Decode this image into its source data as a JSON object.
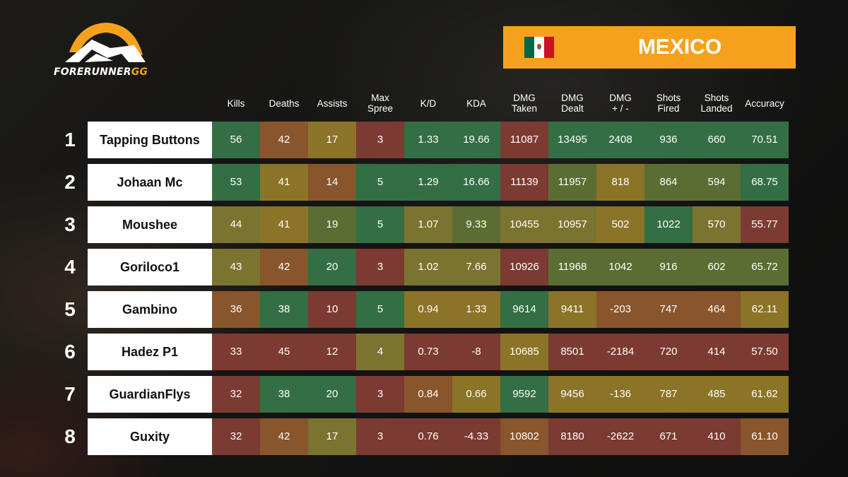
{
  "brand": {
    "name_main": "FORERUNNER",
    "name_suffix": "GG"
  },
  "country": {
    "name": "MEXICO"
  },
  "colors": {
    "green": "#346e44",
    "olive": "#5b6d32",
    "olive_yellow": "#7b7330",
    "yellow": "#8b7328",
    "orange": "#88552c",
    "red_brown": "#7b3a32",
    "accent": "#f6a11d"
  },
  "columns": [
    "Kills",
    "Deaths",
    "Assists",
    "Max\nSpree",
    "K/D",
    "KDA",
    "DMG\nTaken",
    "DMG\nDealt",
    "DMG\n+ / -",
    "Shots\nFired",
    "Shots\nLanded",
    "Accuracy"
  ],
  "rows": [
    {
      "rank": "1",
      "name": "Tapping Buttons",
      "values": [
        "56",
        "42",
        "17",
        "3",
        "1.33",
        "19.66",
        "11087",
        "13495",
        "2408",
        "936",
        "660",
        "70.51"
      ],
      "tones": [
        "green",
        "orange",
        "yellow",
        "red_brown",
        "green",
        "green",
        "red_brown",
        "green",
        "green",
        "green",
        "green",
        "green"
      ]
    },
    {
      "rank": "2",
      "name": "Johaan Mc",
      "values": [
        "53",
        "41",
        "14",
        "5",
        "1.29",
        "16.66",
        "11139",
        "11957",
        "818",
        "864",
        "594",
        "68.75"
      ],
      "tones": [
        "green",
        "yellow",
        "orange",
        "green",
        "green",
        "green",
        "red_brown",
        "olive",
        "yellow",
        "olive",
        "olive",
        "green"
      ]
    },
    {
      "rank": "3",
      "name": "Moushee",
      "values": [
        "44",
        "41",
        "19",
        "5",
        "1.07",
        "9.33",
        "10455",
        "10957",
        "502",
        "1022",
        "570",
        "55.77"
      ],
      "tones": [
        "olive_yellow",
        "yellow",
        "olive",
        "green",
        "olive_yellow",
        "olive",
        "olive_yellow",
        "olive_yellow",
        "yellow",
        "green",
        "olive_yellow",
        "red_brown"
      ]
    },
    {
      "rank": "4",
      "name": "Goriloco1",
      "values": [
        "43",
        "42",
        "20",
        "3",
        "1.02",
        "7.66",
        "10926",
        "11968",
        "1042",
        "916",
        "602",
        "65.72"
      ],
      "tones": [
        "olive_yellow",
        "orange",
        "green",
        "red_brown",
        "olive_yellow",
        "olive_yellow",
        "red_brown",
        "olive",
        "olive",
        "olive",
        "olive",
        "olive"
      ]
    },
    {
      "rank": "5",
      "name": "Gambino",
      "values": [
        "36",
        "38",
        "10",
        "5",
        "0.94",
        "1.33",
        "9614",
        "9411",
        "-203",
        "747",
        "464",
        "62.11"
      ],
      "tones": [
        "orange",
        "green",
        "red_brown",
        "green",
        "yellow",
        "yellow",
        "green",
        "yellow",
        "orange",
        "orange",
        "orange",
        "yellow"
      ]
    },
    {
      "rank": "6",
      "name": "Hadez P1",
      "values": [
        "33",
        "45",
        "12",
        "4",
        "0.73",
        "-8",
        "10685",
        "8501",
        "-2184",
        "720",
        "414",
        "57.50"
      ],
      "tones": [
        "red_brown",
        "red_brown",
        "red_brown",
        "olive_yellow",
        "red_brown",
        "red_brown",
        "yellow",
        "red_brown",
        "red_brown",
        "red_brown",
        "red_brown",
        "red_brown"
      ]
    },
    {
      "rank": "7",
      "name": "GuardianFlys",
      "values": [
        "32",
        "38",
        "20",
        "3",
        "0.84",
        "0.66",
        "9592",
        "9456",
        "-136",
        "787",
        "485",
        "61.62"
      ],
      "tones": [
        "red_brown",
        "green",
        "green",
        "red_brown",
        "orange",
        "yellow",
        "green",
        "yellow",
        "yellow",
        "yellow",
        "yellow",
        "yellow"
      ]
    },
    {
      "rank": "8",
      "name": "Guxity",
      "values": [
        "32",
        "42",
        "17",
        "3",
        "0.76",
        "-4.33",
        "10802",
        "8180",
        "-2622",
        "671",
        "410",
        "61.10"
      ],
      "tones": [
        "red_brown",
        "orange",
        "olive_yellow",
        "red_brown",
        "red_brown",
        "red_brown",
        "orange",
        "red_brown",
        "red_brown",
        "red_brown",
        "red_brown",
        "orange"
      ]
    }
  ]
}
